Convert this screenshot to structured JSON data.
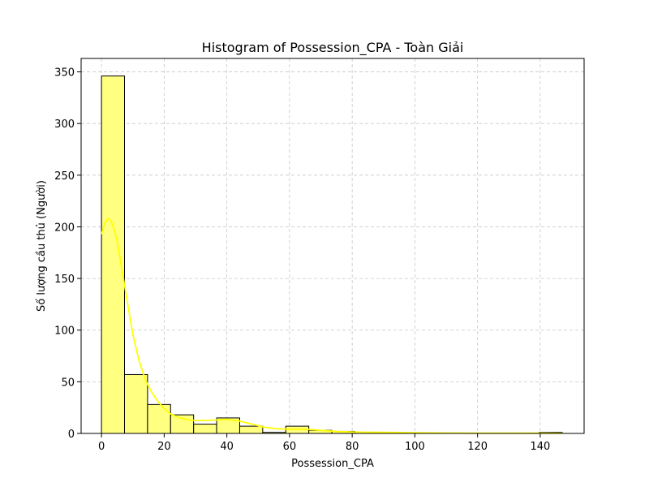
{
  "chart_data": {
    "type": "bar",
    "title": "Histogram of Possession_CPA - Toàn Giải",
    "xlabel": "Possession_CPA",
    "ylabel": "Số lượng cầu thủ (Người)",
    "xlim": [
      -6.5,
      154
    ],
    "ylim": [
      0,
      363
    ],
    "xticks": [
      0,
      20,
      40,
      60,
      80,
      100,
      120,
      140
    ],
    "yticks": [
      0,
      50,
      100,
      150,
      200,
      250,
      300,
      350
    ],
    "grid": true,
    "bin_edges": [
      0,
      7.35,
      14.7,
      22.05,
      29.4,
      36.75,
      44.1,
      51.45,
      58.8,
      66.15,
      73.5,
      80.85,
      88.2,
      95.55,
      102.9,
      110.25,
      117.6,
      124.95,
      132.3,
      139.65,
      147
    ],
    "values": [
      346,
      57,
      28,
      18,
      9,
      15,
      7,
      1,
      7,
      3,
      2,
      0,
      0,
      0,
      0,
      0,
      0,
      0,
      0,
      1
    ],
    "bar_color": "#ffff80",
    "bar_edge_color": "#000000",
    "kde": {
      "color": "#ffff00",
      "x": [
        0,
        1,
        2,
        3,
        4,
        5,
        6,
        8,
        10,
        12,
        14,
        16,
        18,
        20,
        22,
        25,
        28,
        30,
        33,
        36,
        40,
        44,
        48,
        52,
        56,
        60,
        64,
        68,
        72,
        76,
        80,
        84,
        90,
        100,
        110,
        120,
        130,
        140,
        147
      ],
      "y": [
        193,
        203,
        208,
        206,
        198,
        186,
        168,
        132,
        96,
        70,
        52,
        40,
        31,
        24,
        19,
        15,
        13,
        12.5,
        12.5,
        13,
        13.5,
        12,
        9,
        6,
        4.5,
        4,
        4,
        3.5,
        2.5,
        1.8,
        1.4,
        1.2,
        1,
        0.6,
        0.4,
        0.3,
        0.3,
        0.2,
        0.1
      ]
    }
  }
}
